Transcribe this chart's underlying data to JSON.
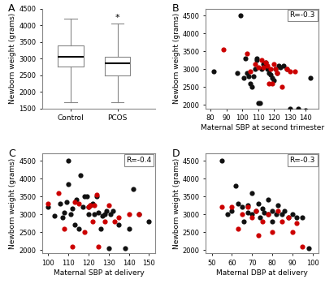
{
  "background_color": "#ffffff",
  "panel_bg": "#ffffff",
  "box_A": {
    "control": {
      "whislo": 1700,
      "q1": 2750,
      "med": 3050,
      "q3": 3400,
      "whishi": 4200
    },
    "pcos": {
      "whislo": 1700,
      "q1": 2500,
      "med": 2850,
      "q3": 3050,
      "whishi": 4050
    }
  },
  "ylabel_A": "Newborn weight (grams)",
  "xticks_A": [
    "Control",
    "PCOS"
  ],
  "ylim_A": [
    1500,
    4500
  ],
  "yticks_A": [
    1500,
    2000,
    2500,
    3000,
    3500,
    4000,
    4500
  ],
  "pcos_star": "*",
  "scatter_B": {
    "black_x": [
      82,
      97,
      99,
      101,
      102,
      103,
      104,
      105,
      106,
      107,
      108,
      109,
      109,
      110,
      111,
      112,
      113,
      114,
      115,
      116,
      117,
      118,
      119,
      120,
      121,
      122,
      123,
      124,
      126,
      128,
      130,
      135,
      140,
      143
    ],
    "black_y": [
      2950,
      2900,
      4500,
      2750,
      3300,
      2900,
      2800,
      2600,
      2500,
      2800,
      3000,
      3250,
      3300,
      2050,
      2050,
      3000,
      3150,
      3100,
      3200,
      3000,
      2900,
      2850,
      2750,
      2700,
      3000,
      2900,
      3100,
      3050,
      3100,
      3000,
      1900,
      1900,
      1850,
      2750
    ],
    "red_x": [
      88,
      103,
      105,
      108,
      110,
      112,
      113,
      115,
      116,
      117,
      118,
      119,
      120,
      121,
      122,
      125,
      128,
      130,
      133
    ],
    "red_y": [
      3550,
      3450,
      2950,
      3150,
      3050,
      3250,
      3050,
      3200,
      3100,
      2600,
      3000,
      2600,
      3150,
      3000,
      2900,
      2500,
      3000,
      2950,
      2950
    ],
    "xlabel": "Maternal SBP at second trimester",
    "ylabel": "Newborn weight (grams)",
    "xlim": [
      77,
      148
    ],
    "ylim": [
      1900,
      4700
    ],
    "xticks": [
      80,
      90,
      100,
      110,
      120,
      130,
      140
    ],
    "yticks": [
      2000,
      2500,
      3000,
      3500,
      4000,
      4500
    ],
    "r_label": "R=-0.3"
  },
  "scatter_C": {
    "black_x": [
      100,
      103,
      106,
      107,
      108,
      109,
      110,
      110,
      111,
      112,
      113,
      114,
      115,
      116,
      117,
      118,
      119,
      120,
      120,
      121,
      122,
      123,
      124,
      125,
      126,
      127,
      128,
      129,
      130,
      131,
      132,
      135,
      138,
      140,
      142,
      145,
      150
    ],
    "black_y": [
      3200,
      2950,
      3300,
      2900,
      3050,
      3350,
      3850,
      4500,
      3000,
      3150,
      2700,
      3400,
      2600,
      4100,
      3200,
      3500,
      3500,
      3000,
      3200,
      3250,
      3300,
      3000,
      3500,
      3050,
      2600,
      2950,
      3000,
      3100,
      2050,
      3000,
      3100,
      2700,
      2050,
      2600,
      3700,
      3000,
      2800
    ],
    "red_x": [
      100,
      105,
      108,
      112,
      113,
      115,
      118,
      120,
      121,
      122,
      123,
      124,
      125,
      128,
      130,
      133,
      135,
      140,
      145
    ],
    "red_y": [
      3300,
      3600,
      2600,
      2100,
      3350,
      3300,
      2500,
      3200,
      3250,
      2800,
      3250,
      3550,
      2100,
      2800,
      3250,
      2800,
      2900,
      3000,
      3000
    ],
    "xlabel": "Maternal SBP at delivery",
    "ylabel": "Newborn weight (grams)",
    "xlim": [
      97,
      153
    ],
    "ylim": [
      1900,
      4700
    ],
    "xticks": [
      100,
      110,
      120,
      130,
      140,
      150
    ],
    "yticks": [
      2000,
      2500,
      3000,
      3500,
      4000,
      4500
    ],
    "r_label": "R=-0.4"
  },
  "scatter_D": {
    "black_x": [
      55,
      58,
      60,
      62,
      63,
      65,
      66,
      68,
      68,
      70,
      70,
      72,
      73,
      74,
      75,
      76,
      78,
      78,
      80,
      80,
      82,
      83,
      85,
      86,
      88,
      90,
      92,
      95,
      98
    ],
    "black_y": [
      4500,
      3000,
      3100,
      3800,
      3300,
      3200,
      2800,
      3050,
      3250,
      3000,
      3600,
      3100,
      3300,
      2900,
      3150,
      3050,
      3000,
      3400,
      2800,
      3100,
      3000,
      3250,
      3000,
      3100,
      2900,
      3000,
      2900,
      2900,
      2050
    ],
    "red_x": [
      55,
      60,
      63,
      65,
      68,
      70,
      72,
      73,
      75,
      78,
      80,
      83,
      85,
      88,
      90,
      92,
      95
    ],
    "red_y": [
      3200,
      3200,
      2600,
      3000,
      3200,
      2900,
      3100,
      2400,
      2800,
      3000,
      2500,
      3100,
      2800,
      2900,
      2500,
      2750,
      2100
    ],
    "xlabel": "Maternal DBP at delivery",
    "ylabel": "Newborn weight (grams)",
    "xlim": [
      47,
      103
    ],
    "ylim": [
      1900,
      4700
    ],
    "xticks": [
      50,
      60,
      70,
      80,
      90,
      100
    ],
    "yticks": [
      2000,
      2500,
      3000,
      3500,
      4000,
      4500
    ],
    "r_label": "R=-0.3"
  },
  "dot_size": 20,
  "black_color": "#111111",
  "red_color": "#cc0000",
  "label_fontsize": 6.5,
  "tick_fontsize": 6,
  "panel_label_fontsize": 9
}
